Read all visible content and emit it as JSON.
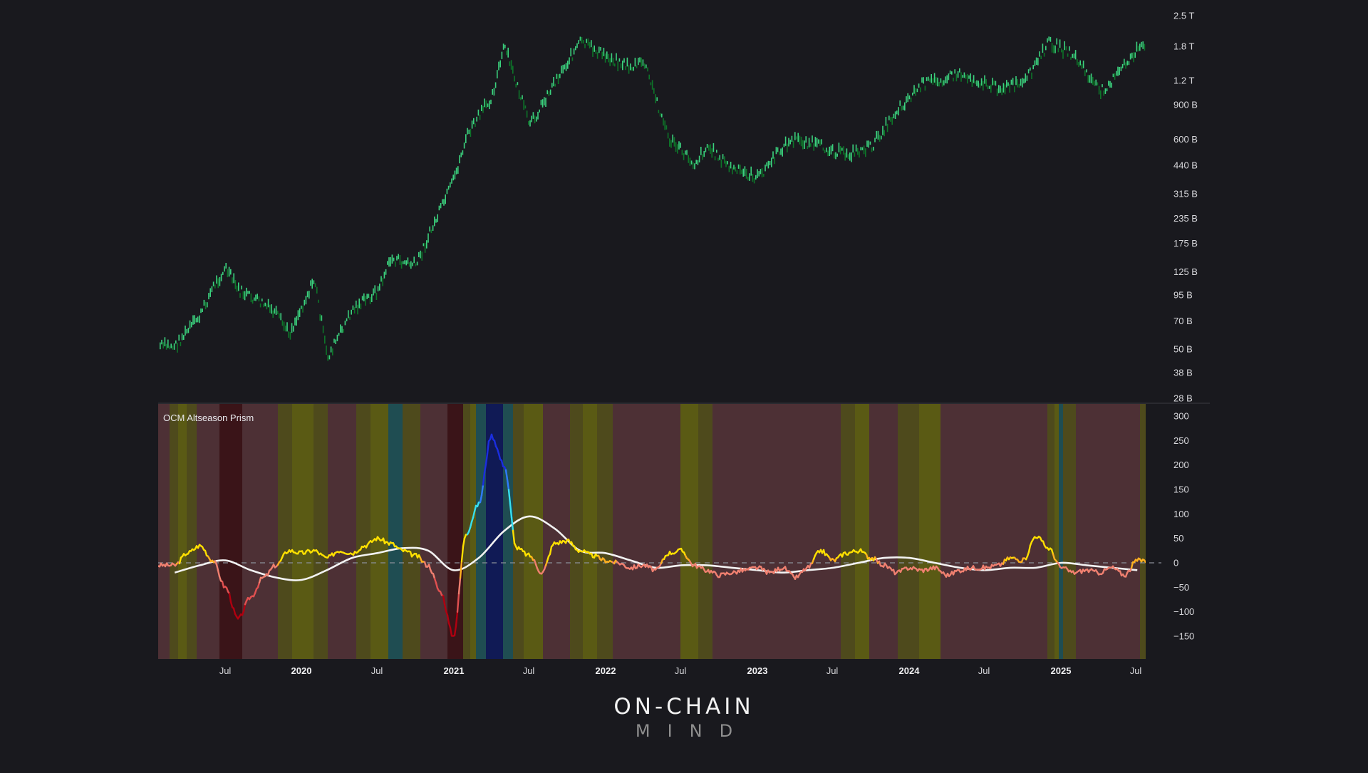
{
  "colors": {
    "background": "#19191e",
    "price_up": "#3ddc84",
    "price_down": "#0d7a2a",
    "moving_average": "#f2f2f2",
    "zero_line": "#8a8f99",
    "separator": "#3a3a42"
  },
  "brand": {
    "line1": "ON-CHAIN",
    "line2": "MIND"
  },
  "chart_data": [
    {
      "type": "line",
      "title": "",
      "pane": "price",
      "description": "Total crypto market cap proxy (log scale, candlestick-style green bars)",
      "yscale": "log",
      "ylim_label": [
        "28 B",
        "2.5 T"
      ],
      "y_ticks": [
        "2.5 T",
        "1.8 T",
        "1.2 T",
        "900 B",
        "600 B",
        "440 B",
        "315 B",
        "235 B",
        "175 B",
        "125 B",
        "95 B",
        "70 B",
        "50 B",
        "38 B",
        "28 B"
      ],
      "y_tick_values_billions": [
        2500,
        1800,
        1200,
        900,
        600,
        440,
        315,
        235,
        175,
        125,
        95,
        70,
        50,
        38,
        28
      ],
      "x": [
        "2019-03",
        "2019-05",
        "2019-06",
        "2019-07",
        "2019-08",
        "2019-10",
        "2019-11",
        "2019-12",
        "2020-02",
        "2020-03",
        "2020-05",
        "2020-07",
        "2020-08",
        "2020-10",
        "2020-11",
        "2021-01",
        "2021-02",
        "2021-04",
        "2021-05",
        "2021-07",
        "2021-09",
        "2021-11",
        "2022-01",
        "2022-03",
        "2022-04",
        "2022-06",
        "2022-08",
        "2022-09",
        "2022-11",
        "2023-01",
        "2023-03",
        "2023-04",
        "2023-06",
        "2023-08",
        "2023-10",
        "2023-12",
        "2024-02",
        "2024-03",
        "2024-05",
        "2024-07",
        "2024-08",
        "2024-10",
        "2024-12",
        "2025-02",
        "2025-04",
        "2025-05",
        "2025-07"
      ],
      "values_billions": [
        52,
        75,
        105,
        130,
        100,
        85,
        75,
        60,
        115,
        45,
        80,
        100,
        145,
        135,
        190,
        370,
        620,
        1000,
        1800,
        700,
        1200,
        1900,
        1600,
        1400,
        1500,
        600,
        450,
        550,
        420,
        380,
        550,
        600,
        550,
        500,
        550,
        850,
        1150,
        1200,
        1300,
        1150,
        1100,
        1150,
        1900,
        1600,
        1050,
        1200,
        1750
      ]
    },
    {
      "type": "line",
      "title": "OCM Altseason Prism",
      "pane": "indicator",
      "ylim": [
        -165,
        320
      ],
      "y_ticks": [
        300,
        250,
        200,
        150,
        100,
        50,
        0,
        -50,
        -100,
        -150
      ],
      "y_tick_labels": [
        "300",
        "250",
        "200",
        "150",
        "100",
        "50",
        "0",
        "−50",
        "−100",
        "−150"
      ],
      "x_ticks": [
        "Jul",
        "2020",
        "Jul",
        "2021",
        "Jul",
        "2022",
        "Jul",
        "2023",
        "Jul",
        "2024",
        "Jul",
        "2025",
        "Jul"
      ],
      "x_tick_is_year": [
        false,
        true,
        false,
        true,
        false,
        true,
        false,
        true,
        false,
        true,
        false,
        true,
        false
      ],
      "zero_line": "dashed",
      "series": [
        {
          "name": "Altseason Prism",
          "color_scale": "red (negative) → salmon → orange → yellow → cyan → blue (high)",
          "x": [
            "2019-03",
            "2019-04",
            "2019-05",
            "2019-06",
            "2019-07",
            "2019-08",
            "2019-09",
            "2019-10",
            "2019-11",
            "2019-12",
            "2020-01",
            "2020-02",
            "2020-03",
            "2020-04",
            "2020-05",
            "2020-06",
            "2020-07",
            "2020-08",
            "2020-09",
            "2020-10",
            "2020-11",
            "2020-12",
            "2021-01",
            "2021-02",
            "2021-03",
            "2021-04",
            "2021-05",
            "2021-06",
            "2021-07",
            "2021-08",
            "2021-09",
            "2021-10",
            "2021-11",
            "2021-12",
            "2022-01",
            "2022-02",
            "2022-03",
            "2022-04",
            "2022-05",
            "2022-06",
            "2022-07",
            "2022-08",
            "2022-09",
            "2022-10",
            "2022-11",
            "2022-12",
            "2023-01",
            "2023-02",
            "2023-03",
            "2023-04",
            "2023-05",
            "2023-06",
            "2023-07",
            "2023-08",
            "2023-09",
            "2023-10",
            "2023-11",
            "2023-12",
            "2024-01",
            "2024-02",
            "2024-03",
            "2024-04",
            "2024-05",
            "2024-06",
            "2024-07",
            "2024-08",
            "2024-09",
            "2024-10",
            "2024-11",
            "2024-12",
            "2025-01",
            "2025-02",
            "2025-03",
            "2025-04",
            "2025-05",
            "2025-06",
            "2025-07"
          ],
          "values": [
            -5,
            20,
            35,
            5,
            -50,
            -115,
            -70,
            -30,
            -5,
            25,
            20,
            25,
            10,
            25,
            20,
            35,
            50,
            40,
            25,
            15,
            -5,
            -60,
            -150,
            60,
            120,
            260,
            200,
            30,
            15,
            -20,
            40,
            45,
            25,
            15,
            5,
            0,
            -10,
            -5,
            -15,
            20,
            25,
            -5,
            -15,
            -25,
            -20,
            -15,
            -10,
            -20,
            -10,
            -30,
            -10,
            25,
            5,
            20,
            25,
            10,
            -5,
            -20,
            -10,
            -15,
            -10,
            -25,
            -15,
            -10,
            -10,
            -5,
            10,
            5,
            55,
            30,
            -10,
            -20,
            -15,
            -20,
            -10,
            -25,
            5
          ]
        },
        {
          "name": "Moving average",
          "color": "#f2f2f2",
          "x": [
            "2019-03",
            "2019-05",
            "2019-07",
            "2019-09",
            "2019-11",
            "2020-01",
            "2020-03",
            "2020-05",
            "2020-07",
            "2020-09",
            "2020-11",
            "2021-01",
            "2021-03",
            "2021-05",
            "2021-07",
            "2021-09",
            "2021-11",
            "2022-01",
            "2022-03",
            "2022-05",
            "2022-07",
            "2022-09",
            "2022-11",
            "2023-01",
            "2023-03",
            "2023-05",
            "2023-07",
            "2023-09",
            "2023-11",
            "2024-01",
            "2024-03",
            "2024-05",
            "2024-07",
            "2024-09",
            "2024-11",
            "2025-01",
            "2025-03",
            "2025-05",
            "2025-07"
          ],
          "values": [
            -20,
            -5,
            5,
            -15,
            -30,
            -35,
            -15,
            10,
            20,
            30,
            25,
            -15,
            10,
            65,
            95,
            70,
            25,
            20,
            5,
            -10,
            -5,
            -5,
            -10,
            -15,
            -20,
            -15,
            -10,
            0,
            10,
            10,
            0,
            -10,
            -15,
            -10,
            -10,
            0,
            -5,
            -10,
            -15
          ]
        }
      ],
      "background_regimes": {
        "description": "Vertical colored bands per time slice: maroon = bearish/BTC season, olive/yellow = neutral-mild alt strength, teal/blue = altseason",
        "colors": {
          "dark_red": "#3a1418",
          "maroon": "#4d3035",
          "olive": "#4e4a1c",
          "yellow": "#5a5a14",
          "teal": "#1f4d52",
          "navy": "#101a55"
        }
      }
    }
  ]
}
